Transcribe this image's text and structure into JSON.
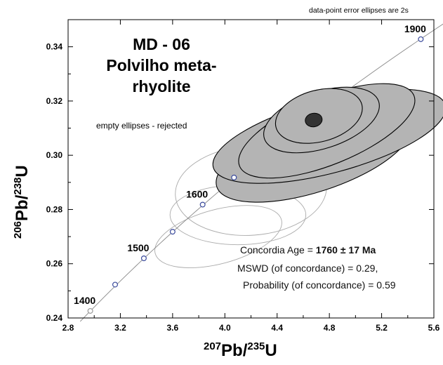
{
  "header": {
    "sample_id": "MD - 06",
    "sample_line2": "Polvilho meta-",
    "sample_line3": "rhyolite",
    "error_note": "data-point error ellipses are 2s",
    "rejected_note": "empty ellipses - rejected"
  },
  "result": {
    "age_label": "Concordia Age = ",
    "age_value": "1760 ± 17 Ma",
    "mswd": "MSWD (of concordance) = 0.29,",
    "probability": "Probability (of concordance) = 0.59"
  },
  "axes": {
    "x_isotope_207": "207",
    "x_element_pb": "Pb/",
    "x_isotope_235": "235",
    "x_element_u": "U",
    "y_isotope_206": "206",
    "y_element_pb": "Pb/",
    "y_isotope_238": "238",
    "y_element_u": "U"
  },
  "colors": {
    "accepted_fill": "#b4b4b4",
    "concordia_age_fill": "#333333",
    "rejected_stroke": "#aaaaaa",
    "marker_stroke": "#3a4a9c",
    "curve": "#888888"
  },
  "chart_data": {
    "type": "scatter",
    "subtype": "concordia diagram",
    "xlabel": "207Pb/235U",
    "ylabel": "206Pb/238U",
    "xlim": [
      2.8,
      5.6
    ],
    "ylim": [
      0.24,
      0.35
    ],
    "x_ticks": [
      2.8,
      3.2,
      3.6,
      4.0,
      4.4,
      4.8,
      5.2,
      5.6
    ],
    "x_tick_labels": [
      "2.8",
      "3.2",
      "3.6",
      "4.0",
      "4.4",
      "4.8",
      "5.2",
      "5.6"
    ],
    "y_ticks": [
      0.24,
      0.26,
      0.28,
      0.3,
      0.32,
      0.34
    ],
    "y_tick_labels": [
      "0.24",
      "0.26",
      "0.28",
      "0.30",
      "0.32",
      "0.34"
    ],
    "grid": false,
    "concordia_markers": [
      {
        "age": "1400",
        "x": 2.97,
        "y": 0.2426,
        "labeled": true,
        "style": "open-gray"
      },
      {
        "age": "1450",
        "x": 3.16,
        "y": 0.2523,
        "labeled": false,
        "style": "blue"
      },
      {
        "age": "1500",
        "x": 3.38,
        "y": 0.262,
        "labeled": true,
        "style": "blue"
      },
      {
        "age": "1550",
        "x": 3.6,
        "y": 0.2718,
        "labeled": false,
        "style": "blue"
      },
      {
        "age": "1600",
        "x": 3.83,
        "y": 0.2818,
        "labeled": true,
        "style": "blue"
      },
      {
        "age": "1650",
        "x": 4.07,
        "y": 0.2918,
        "labeled": false,
        "style": "blue"
      },
      {
        "age": "1900",
        "x": 5.5,
        "y": 0.3428,
        "labeled": true,
        "style": "blue"
      }
    ],
    "concordia_age_ellipse": {
      "cx": 4.68,
      "cy": 0.313,
      "rx": 0.065,
      "ry": 0.0025,
      "angle": 10
    },
    "accepted_ellipses": [
      {
        "cx": 4.68,
        "cy": 0.3,
        "rx": 0.78,
        "ry": 0.0135,
        "angle": 18
      },
      {
        "cx": 4.8,
        "cy": 0.307,
        "rx": 0.92,
        "ry": 0.0135,
        "angle": 15
      },
      {
        "cx": 4.78,
        "cy": 0.309,
        "rx": 0.72,
        "ry": 0.0125,
        "angle": 22
      },
      {
        "cx": 4.74,
        "cy": 0.313,
        "rx": 0.46,
        "ry": 0.0105,
        "angle": 18
      },
      {
        "cx": 4.72,
        "cy": 0.3145,
        "rx": 0.34,
        "ry": 0.0095,
        "angle": 15
      }
    ],
    "rejected_ellipses": [
      {
        "cx": 4.2,
        "cy": 0.287,
        "rx": 0.58,
        "ry": 0.0165,
        "angle": 4
      },
      {
        "cx": 4.1,
        "cy": 0.278,
        "rx": 0.52,
        "ry": 0.011,
        "angle": 0
      },
      {
        "cx": 3.95,
        "cy": 0.27,
        "rx": 0.5,
        "ry": 0.01,
        "angle": 15
      },
      {
        "cx": 4.2,
        "cy": 0.291,
        "rx": 0.2,
        "ry": 0.004,
        "angle": 25
      },
      {
        "cx": 4.28,
        "cy": 0.2915,
        "rx": 0.22,
        "ry": 0.0045,
        "angle": 12
      }
    ]
  }
}
